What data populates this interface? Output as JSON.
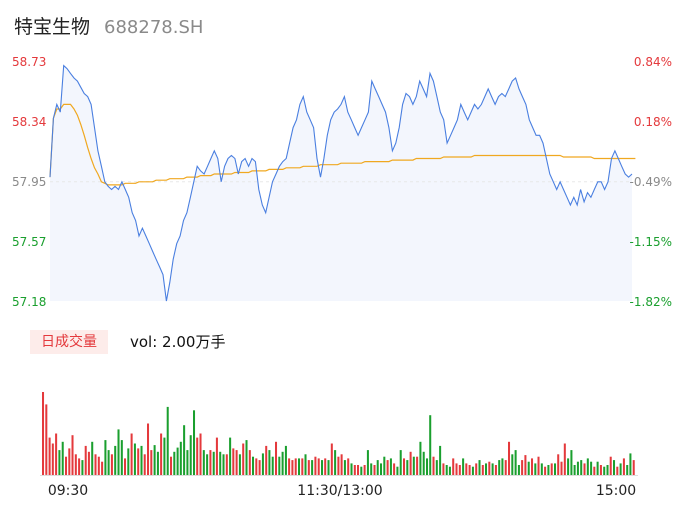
{
  "header": {
    "name": "特宝生物",
    "code": "688278.SH"
  },
  "colors": {
    "up": "#e4393c",
    "down": "#1a9f2e",
    "neutral": "#8a8a8a",
    "price_line": "#4a7fe0",
    "avg_line": "#f0a820",
    "area": "#f3f6fd"
  },
  "chart_data": [
    {
      "type": "line",
      "y_left_ticks": [
        "58.73",
        "58.34",
        "57.95",
        "57.57",
        "57.18"
      ],
      "y_right_ticks": [
        "0.84%",
        "0.18%",
        "-0.49%",
        "-1.15%",
        "-1.82%"
      ],
      "ylim": [
        57.18,
        58.73
      ],
      "x_ticks": [
        "09:30",
        "11:30/13:00",
        "15:00"
      ],
      "series": [
        {
          "values": [
            57.98,
            58.36,
            58.45,
            58.4,
            58.7,
            58.68,
            58.65,
            58.62,
            58.6,
            58.56,
            58.52,
            58.5,
            58.45,
            58.3,
            58.15,
            58.05,
            57.95,
            57.92,
            57.9,
            57.92,
            57.9,
            57.95,
            57.9,
            57.85,
            57.75,
            57.7,
            57.6,
            57.65,
            57.6,
            57.55,
            57.5,
            57.45,
            57.4,
            57.35,
            57.18,
            57.3,
            57.45,
            57.55,
            57.6,
            57.7,
            57.75,
            57.85,
            57.95,
            58.05,
            58.02,
            58.0,
            58.05,
            58.1,
            58.15,
            58.1,
            57.95,
            58.05,
            58.1,
            58.12,
            58.1,
            58.0,
            58.08,
            58.1,
            58.05,
            58.1,
            58.08,
            57.9,
            57.8,
            57.75,
            57.85,
            57.95,
            58.0,
            58.05,
            58.08,
            58.1,
            58.2,
            58.3,
            58.35,
            58.45,
            58.5,
            58.4,
            58.35,
            58.3,
            58.1,
            57.98,
            58.1,
            58.25,
            58.35,
            58.4,
            58.42,
            58.45,
            58.5,
            58.4,
            58.35,
            58.3,
            58.25,
            58.3,
            58.35,
            58.4,
            58.6,
            58.55,
            58.5,
            58.45,
            58.4,
            58.3,
            58.15,
            58.2,
            58.3,
            58.45,
            58.52,
            58.5,
            58.45,
            58.5,
            58.6,
            58.55,
            58.5,
            58.65,
            58.6,
            58.5,
            58.4,
            58.35,
            58.2,
            58.25,
            58.3,
            58.35,
            58.45,
            58.4,
            58.35,
            58.4,
            58.45,
            58.42,
            58.45,
            58.5,
            58.55,
            58.5,
            58.45,
            58.5,
            58.52,
            58.5,
            58.55,
            58.6,
            58.62,
            58.55,
            58.5,
            58.45,
            58.35,
            58.3,
            58.25,
            58.25,
            58.2,
            58.1,
            58.0,
            57.95,
            57.9,
            57.95,
            57.9,
            57.85,
            57.8,
            57.85,
            57.8,
            57.9,
            57.82,
            57.88,
            57.85,
            57.9,
            57.95,
            57.95,
            57.9,
            57.95,
            58.1,
            58.15,
            58.1,
            58.05,
            58.0,
            57.98,
            58.0
          ],
          "color": "#4a7fe0"
        },
        {
          "values": [
            57.98,
            58.36,
            58.42,
            58.42,
            58.45,
            58.45,
            58.45,
            58.42,
            58.38,
            58.32,
            58.25,
            58.17,
            58.1,
            58.04,
            58.0,
            57.95,
            57.94,
            57.93,
            57.93,
            57.93,
            57.93,
            57.93,
            57.94,
            57.94,
            57.94,
            57.94,
            57.95,
            57.95,
            57.95,
            57.95,
            57.95,
            57.96,
            57.96,
            57.96,
            57.96,
            57.97,
            57.97,
            57.97,
            57.97,
            57.97,
            57.98,
            57.98,
            57.98,
            57.98,
            57.99,
            57.99,
            57.99,
            57.99,
            58.0,
            58.0,
            58.0,
            58.0,
            58.0,
            58.0,
            58.01,
            58.01,
            58.01,
            58.01,
            58.01,
            58.02,
            58.02,
            58.02,
            58.02,
            58.02,
            58.03,
            58.03,
            58.03,
            58.03,
            58.03,
            58.04,
            58.04,
            58.04,
            58.04,
            58.04,
            58.05,
            58.05,
            58.05,
            58.05,
            58.05,
            58.06,
            58.06,
            58.06,
            58.06,
            58.06,
            58.06,
            58.07,
            58.07,
            58.07,
            58.07,
            58.07,
            58.07,
            58.07,
            58.08,
            58.08,
            58.08,
            58.08,
            58.08,
            58.08,
            58.08,
            58.08,
            58.09,
            58.09,
            58.09,
            58.09,
            58.09,
            58.09,
            58.09,
            58.1,
            58.1,
            58.1,
            58.1,
            58.1,
            58.1,
            58.1,
            58.1,
            58.11,
            58.11,
            58.11,
            58.11,
            58.11,
            58.11,
            58.11,
            58.11,
            58.11,
            58.12,
            58.12,
            58.12,
            58.12,
            58.12,
            58.12,
            58.12,
            58.12,
            58.12,
            58.12,
            58.12,
            58.12,
            58.12,
            58.12,
            58.12,
            58.12,
            58.12,
            58.12,
            58.12,
            58.12,
            58.12,
            58.12,
            58.12,
            58.12,
            58.12,
            58.12,
            58.11,
            58.11,
            58.11,
            58.11,
            58.11,
            58.11,
            58.11,
            58.11,
            58.11,
            58.1,
            58.1,
            58.1,
            58.1,
            58.1,
            58.1,
            58.1,
            58.1,
            58.1,
            58.1,
            58.1,
            58.1,
            58.1
          ],
          "color": "#f0a820"
        }
      ]
    },
    {
      "type": "bar",
      "badge": "日成交量",
      "vol_text": "vol: 2.00万手",
      "bars": [
        {
          "v": 1,
          "d": "u"
        },
        {
          "v": 0.85,
          "d": "u"
        },
        {
          "v": 0.45,
          "d": "u"
        },
        {
          "v": 0.38,
          "d": "u"
        },
        {
          "v": 0.5,
          "d": "u"
        },
        {
          "v": 0.3,
          "d": "d"
        },
        {
          "v": 0.4,
          "d": "d"
        },
        {
          "v": 0.22,
          "d": "u"
        },
        {
          "v": 0.32,
          "d": "u"
        },
        {
          "v": 0.48,
          "d": "u"
        },
        {
          "v": 0.25,
          "d": "u"
        },
        {
          "v": 0.2,
          "d": "u"
        },
        {
          "v": 0.18,
          "d": "d"
        },
        {
          "v": 0.35,
          "d": "u"
        },
        {
          "v": 0.28,
          "d": "u"
        },
        {
          "v": 0.4,
          "d": "d"
        },
        {
          "v": 0.25,
          "d": "u"
        },
        {
          "v": 0.22,
          "d": "u"
        },
        {
          "v": 0.16,
          "d": "u"
        },
        {
          "v": 0.42,
          "d": "d"
        },
        {
          "v": 0.3,
          "d": "d"
        },
        {
          "v": 0.25,
          "d": "u"
        },
        {
          "v": 0.35,
          "d": "d"
        },
        {
          "v": 0.55,
          "d": "d"
        },
        {
          "v": 0.42,
          "d": "d"
        },
        {
          "v": 0.2,
          "d": "u"
        },
        {
          "v": 0.32,
          "d": "d"
        },
        {
          "v": 0.5,
          "d": "u"
        },
        {
          "v": 0.38,
          "d": "d"
        },
        {
          "v": 0.32,
          "d": "u"
        },
        {
          "v": 0.35,
          "d": "d"
        },
        {
          "v": 0.25,
          "d": "u"
        },
        {
          "v": 0.62,
          "d": "u"
        },
        {
          "v": 0.3,
          "d": "u"
        },
        {
          "v": 0.36,
          "d": "d"
        },
        {
          "v": 0.28,
          "d": "d"
        },
        {
          "v": 0.5,
          "d": "u"
        },
        {
          "v": 0.45,
          "d": "d"
        },
        {
          "v": 0.82,
          "d": "d"
        },
        {
          "v": 0.22,
          "d": "u"
        },
        {
          "v": 0.28,
          "d": "d"
        },
        {
          "v": 0.33,
          "d": "d"
        },
        {
          "v": 0.4,
          "d": "d"
        },
        {
          "v": 0.6,
          "d": "d"
        },
        {
          "v": 0.3,
          "d": "d"
        },
        {
          "v": 0.48,
          "d": "d"
        },
        {
          "v": 0.78,
          "d": "d"
        },
        {
          "v": 0.45,
          "d": "u"
        },
        {
          "v": 0.5,
          "d": "u"
        },
        {
          "v": 0.3,
          "d": "d"
        },
        {
          "v": 0.25,
          "d": "d"
        },
        {
          "v": 0.3,
          "d": "u"
        },
        {
          "v": 0.28,
          "d": "d"
        },
        {
          "v": 0.45,
          "d": "u"
        },
        {
          "v": 0.28,
          "d": "d"
        },
        {
          "v": 0.25,
          "d": "d"
        },
        {
          "v": 0.25,
          "d": "u"
        },
        {
          "v": 0.45,
          "d": "d"
        },
        {
          "v": 0.32,
          "d": "u"
        },
        {
          "v": 0.3,
          "d": "u"
        },
        {
          "v": 0.25,
          "d": "d"
        },
        {
          "v": 0.38,
          "d": "u"
        },
        {
          "v": 0.42,
          "d": "d"
        },
        {
          "v": 0.3,
          "d": "u"
        },
        {
          "v": 0.22,
          "d": "d"
        },
        {
          "v": 0.2,
          "d": "u"
        },
        {
          "v": 0.18,
          "d": "u"
        },
        {
          "v": 0.26,
          "d": "d"
        },
        {
          "v": 0.35,
          "d": "u"
        },
        {
          "v": 0.3,
          "d": "d"
        },
        {
          "v": 0.22,
          "d": "d"
        },
        {
          "v": 0.4,
          "d": "u"
        },
        {
          "v": 0.22,
          "d": "d"
        },
        {
          "v": 0.28,
          "d": "d"
        },
        {
          "v": 0.35,
          "d": "d"
        },
        {
          "v": 0.2,
          "d": "u"
        },
        {
          "v": 0.18,
          "d": "u"
        },
        {
          "v": 0.2,
          "d": "u"
        },
        {
          "v": 0.2,
          "d": "d"
        },
        {
          "v": 0.2,
          "d": "u"
        },
        {
          "v": 0.25,
          "d": "d"
        },
        {
          "v": 0.18,
          "d": "u"
        },
        {
          "v": 0.18,
          "d": "d"
        },
        {
          "v": 0.22,
          "d": "u"
        },
        {
          "v": 0.2,
          "d": "u"
        },
        {
          "v": 0.18,
          "d": "d"
        },
        {
          "v": 0.2,
          "d": "u"
        },
        {
          "v": 0.18,
          "d": "d"
        },
        {
          "v": 0.38,
          "d": "u"
        },
        {
          "v": 0.3,
          "d": "d"
        },
        {
          "v": 0.22,
          "d": "u"
        },
        {
          "v": 0.25,
          "d": "u"
        },
        {
          "v": 0.18,
          "d": "d"
        },
        {
          "v": 0.2,
          "d": "u"
        },
        {
          "v": 0.14,
          "d": "d"
        },
        {
          "v": 0.12,
          "d": "u"
        },
        {
          "v": 0.12,
          "d": "u"
        },
        {
          "v": 0.1,
          "d": "d"
        },
        {
          "v": 0.12,
          "d": "u"
        },
        {
          "v": 0.3,
          "d": "d"
        },
        {
          "v": 0.14,
          "d": "d"
        },
        {
          "v": 0.12,
          "d": "u"
        },
        {
          "v": 0.18,
          "d": "d"
        },
        {
          "v": 0.14,
          "d": "d"
        },
        {
          "v": 0.22,
          "d": "d"
        },
        {
          "v": 0.18,
          "d": "u"
        },
        {
          "v": 0.2,
          "d": "d"
        },
        {
          "v": 0.14,
          "d": "u"
        },
        {
          "v": 0.1,
          "d": "d"
        },
        {
          "v": 0.3,
          "d": "d"
        },
        {
          "v": 0.2,
          "d": "u"
        },
        {
          "v": 0.18,
          "d": "d"
        },
        {
          "v": 0.28,
          "d": "u"
        },
        {
          "v": 0.22,
          "d": "d"
        },
        {
          "v": 0.22,
          "d": "u"
        },
        {
          "v": 0.4,
          "d": "d"
        },
        {
          "v": 0.28,
          "d": "d"
        },
        {
          "v": 0.2,
          "d": "d"
        },
        {
          "v": 0.72,
          "d": "d"
        },
        {
          "v": 0.22,
          "d": "u"
        },
        {
          "v": 0.18,
          "d": "d"
        },
        {
          "v": 0.35,
          "d": "d"
        },
        {
          "v": 0.14,
          "d": "u"
        },
        {
          "v": 0.12,
          "d": "d"
        },
        {
          "v": 0.1,
          "d": "d"
        },
        {
          "v": 0.2,
          "d": "u"
        },
        {
          "v": 0.14,
          "d": "u"
        },
        {
          "v": 0.12,
          "d": "u"
        },
        {
          "v": 0.2,
          "d": "d"
        },
        {
          "v": 0.14,
          "d": "u"
        },
        {
          "v": 0.12,
          "d": "u"
        },
        {
          "v": 0.1,
          "d": "d"
        },
        {
          "v": 0.14,
          "d": "u"
        },
        {
          "v": 0.18,
          "d": "d"
        },
        {
          "v": 0.12,
          "d": "u"
        },
        {
          "v": 0.14,
          "d": "d"
        },
        {
          "v": 0.16,
          "d": "u"
        },
        {
          "v": 0.14,
          "d": "d"
        },
        {
          "v": 0.12,
          "d": "u"
        },
        {
          "v": 0.18,
          "d": "d"
        },
        {
          "v": 0.2,
          "d": "d"
        },
        {
          "v": 0.18,
          "d": "u"
        },
        {
          "v": 0.4,
          "d": "u"
        },
        {
          "v": 0.25,
          "d": "d"
        },
        {
          "v": 0.3,
          "d": "d"
        },
        {
          "v": 0.12,
          "d": "d"
        },
        {
          "v": 0.18,
          "d": "u"
        },
        {
          "v": 0.24,
          "d": "u"
        },
        {
          "v": 0.16,
          "d": "d"
        },
        {
          "v": 0.2,
          "d": "u"
        },
        {
          "v": 0.14,
          "d": "d"
        },
        {
          "v": 0.22,
          "d": "u"
        },
        {
          "v": 0.14,
          "d": "d"
        },
        {
          "v": 0.1,
          "d": "u"
        },
        {
          "v": 0.12,
          "d": "d"
        },
        {
          "v": 0.14,
          "d": "u"
        },
        {
          "v": 0.14,
          "d": "d"
        },
        {
          "v": 0.25,
          "d": "u"
        },
        {
          "v": 0.16,
          "d": "u"
        },
        {
          "v": 0.38,
          "d": "u"
        },
        {
          "v": 0.2,
          "d": "d"
        },
        {
          "v": 0.3,
          "d": "d"
        },
        {
          "v": 0.12,
          "d": "d"
        },
        {
          "v": 0.16,
          "d": "d"
        },
        {
          "v": 0.18,
          "d": "d"
        },
        {
          "v": 0.14,
          "d": "u"
        },
        {
          "v": 0.2,
          "d": "d"
        },
        {
          "v": 0.16,
          "d": "d"
        },
        {
          "v": 0.1,
          "d": "u"
        },
        {
          "v": 0.16,
          "d": "d"
        },
        {
          "v": 0.12,
          "d": "u"
        },
        {
          "v": 0.1,
          "d": "d"
        },
        {
          "v": 0.12,
          "d": "d"
        },
        {
          "v": 0.22,
          "d": "u"
        },
        {
          "v": 0.18,
          "d": "d"
        },
        {
          "v": 0.1,
          "d": "u"
        },
        {
          "v": 0.14,
          "d": "d"
        },
        {
          "v": 0.2,
          "d": "u"
        },
        {
          "v": 0.12,
          "d": "d"
        },
        {
          "v": 0.26,
          "d": "d"
        },
        {
          "v": 0.18,
          "d": "u"
        }
      ]
    }
  ]
}
